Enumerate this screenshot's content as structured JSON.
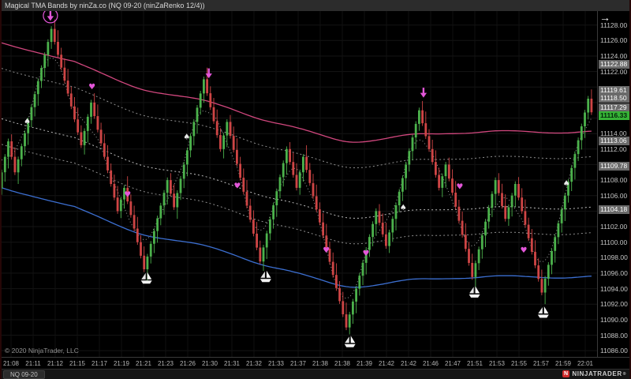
{
  "window": {
    "title": "Magical TMA Bands by ninZa.co (NQ 09-20 (ninZaRenko 12/4))",
    "copyright": "© 2020 NinjaTrader, LLC",
    "tab_label": "NQ 09-20",
    "brand": "NINJATRADER",
    "brand_reg": "®",
    "brand_initial": "N",
    "go_to_latest_arrow": "→"
  },
  "colors": {
    "background": "#000000",
    "titlebar": "#2c2c2c",
    "up_candle": "#4cb24c",
    "down_candle": "#cf4545",
    "upper_band": "#d1477e",
    "lower_band": "#3c6fd1",
    "dotted_band": "#8d8d8d",
    "marker_magenta": "#e356d9",
    "last_price_badge": "#36b336",
    "level_badge": "#6a6a6a",
    "brand_red": "#cf2b2b"
  },
  "chart_data": {
    "type": "candlestick",
    "subtype": "renko",
    "title": "Magical TMA Bands by ninZa.co",
    "instrument": "NQ 09-20",
    "bar_type": "ninZaRenko 12/4",
    "last_price": 11116.33,
    "y_axis": {
      "view_min": 11085.2,
      "view_max": 11129.8,
      "tick_start": 11086,
      "tick_step": 2,
      "tick_end": 11128
    },
    "x_axis": {
      "labels": [
        "21:08",
        "21:11",
        "21:12",
        "21:15",
        "21:17",
        "21:19",
        "21:21",
        "21:23",
        "21:26",
        "21:30",
        "21:31",
        "21:32",
        "21:33",
        "21:37",
        "21:38",
        "21:38",
        "21:39",
        "21:42",
        "21:42",
        "21:46",
        "21:47",
        "21:51",
        "21:53",
        "21:55",
        "21:57",
        "21:59",
        "22:01"
      ]
    },
    "price_path": {
      "brick_size": 1.75,
      "swings": [
        11107,
        11113,
        11109,
        11127.5,
        11112.5,
        11118,
        11104,
        11107,
        11096.5,
        11108,
        11104.5,
        11121,
        11112,
        11115.5,
        11097.5,
        11112,
        11107,
        11111,
        11089,
        11104,
        11099.5,
        11117,
        11107,
        11110,
        11095.5,
        11108,
        11103,
        11107.5,
        11093.5,
        11118.5,
        11116.75
      ]
    },
    "bands": {
      "upper_solid_offset": 9.8,
      "upper_dotted_offset": 6.5,
      "mid_dotted_offset": 0,
      "lower_dotted_offset": -3.3,
      "lower_solid_offset": -8.9,
      "current_values": {
        "upper_band": 11122.88,
        "upper_inner": 11119.61,
        "fast_line": 11118.5,
        "upper_inner2": 11117.29,
        "center": 11113.06,
        "lower_inner": 11109.78,
        "lower_band": 11104.18
      }
    },
    "badges": [
      {
        "value": "11122.88",
        "price": 11122.88,
        "type": "level"
      },
      {
        "value": "11119.61",
        "price": 11119.61,
        "type": "level"
      },
      {
        "value": "11118.50",
        "price": 11118.5,
        "type": "level"
      },
      {
        "value": "11117.29",
        "price": 11117.29,
        "type": "level"
      },
      {
        "value": "11116.33",
        "price": 11116.33,
        "type": "last"
      },
      {
        "value": "11113.06",
        "price": 11113.06,
        "type": "level"
      },
      {
        "value": "11109.78",
        "price": 11109.78,
        "type": "level"
      },
      {
        "value": "11104.18",
        "price": 11104.18,
        "type": "level"
      }
    ],
    "markers": {
      "down_arrows": [
        {
          "x": 0.085,
          "price": 11129.2,
          "ring": true
        },
        {
          "x": 0.352,
          "price": 11121.8,
          "ring": false
        },
        {
          "x": 0.714,
          "price": 11119.3,
          "ring": false
        }
      ],
      "hearts": [
        {
          "x": 0.155,
          "price": 11120.1
        },
        {
          "x": 0.215,
          "price": 11106.2
        },
        {
          "x": 0.4,
          "price": 11107.3
        },
        {
          "x": 0.55,
          "price": 11099.0
        },
        {
          "x": 0.617,
          "price": 11098.6
        },
        {
          "x": 0.775,
          "price": 11107.2
        },
        {
          "x": 0.883,
          "price": 11099.0
        }
      ],
      "spades": [
        {
          "x": 0.046,
          "price": 11115.6
        },
        {
          "x": 0.315,
          "price": 11113.6
        },
        {
          "x": 0.68,
          "price": 11104.5
        },
        {
          "x": 0.955,
          "price": 11107.6
        }
      ],
      "ships": [
        {
          "x": 0.247,
          "price": 11095.0
        },
        {
          "x": 0.448,
          "price": 11095.2
        },
        {
          "x": 0.59,
          "price": 11086.8
        },
        {
          "x": 0.8,
          "price": 11093.2
        },
        {
          "x": 0.916,
          "price": 11090.6
        }
      ]
    }
  }
}
